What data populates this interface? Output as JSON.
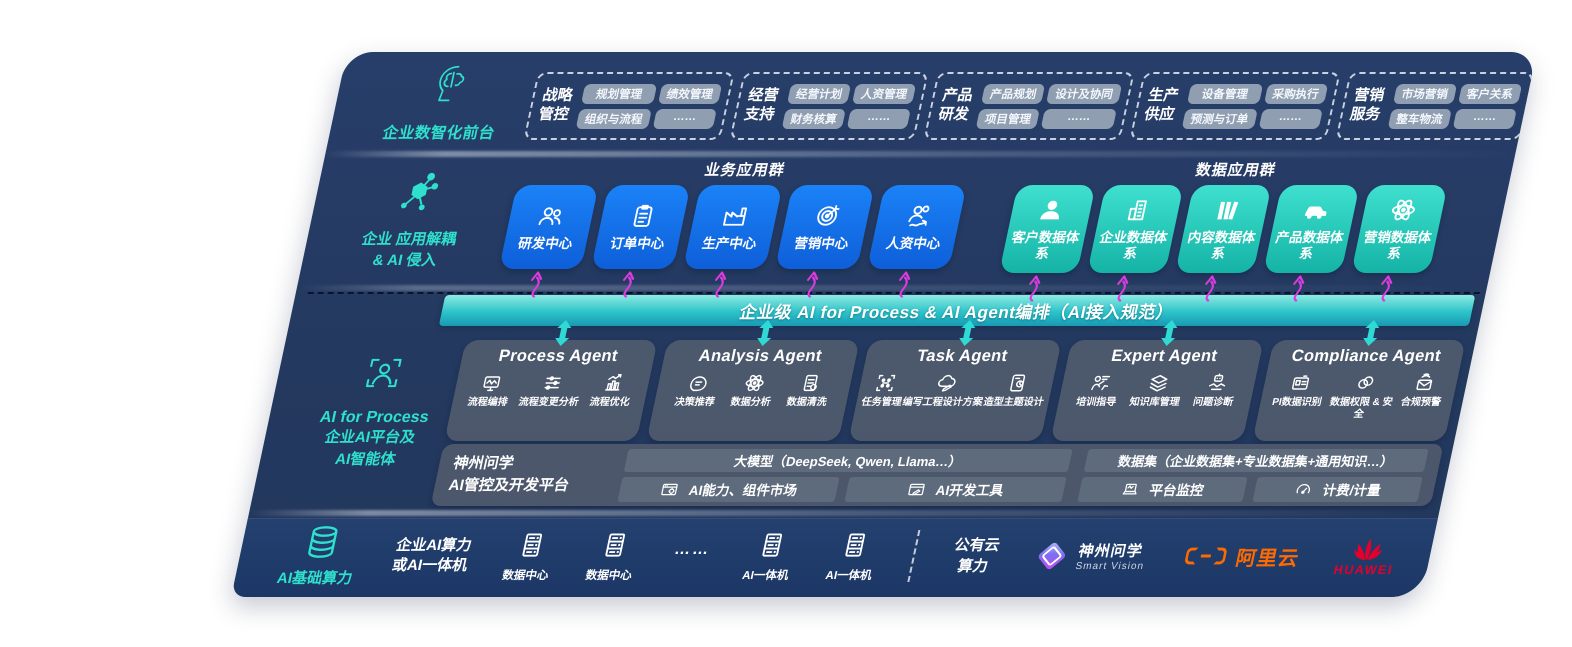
{
  "colors": {
    "panel_navy": "#24395F",
    "infra_navy": "#1E3A6C",
    "accent_teal": "#2FE0CD",
    "app_blue": "#1777F2",
    "data_teal": "#2ED3C4",
    "agent_slate": "#4D596C",
    "band_teal": "#2CC3C9",
    "magenta": "#DC3BDF",
    "pill_gray": "#9AA6BA",
    "aliyun_orange": "#FF6A00",
    "huawei_red": "#E4002B"
  },
  "front_layer": {
    "icon": "brain-head-icon",
    "label": "企业数智化前台",
    "groups": [
      {
        "title": "战略管控",
        "items": [
          "规划管理",
          "绩效管理",
          "组织与流程",
          "……"
        ]
      },
      {
        "title": "经营支持",
        "items": [
          "经营计划",
          "人资管理",
          "财务核算",
          "……"
        ]
      },
      {
        "title": "产品研发",
        "items": [
          "产品规划",
          "设计及协同",
          "项目管理",
          "……"
        ]
      },
      {
        "title": "生产供应",
        "items": [
          "设备管理",
          "采购执行",
          "预测与订单",
          "……"
        ]
      },
      {
        "title": "营销服务",
        "items": [
          "市场营销",
          "客户关系",
          "整车物流",
          "……"
        ]
      }
    ]
  },
  "app_layer": {
    "icon": "molecule-icon",
    "label_line1": "企业 应用解耦",
    "label_line2": "& AI 侵入",
    "connector_icon": "curved-arrow-icon",
    "business": {
      "title": "业务应用群",
      "boxes": [
        {
          "label": "研发中心",
          "icon": "people-icon"
        },
        {
          "label": "订单中心",
          "icon": "clipboard-icon"
        },
        {
          "label": "生产中心",
          "icon": "factory-icon"
        },
        {
          "label": "营销中心",
          "icon": "target-icon"
        },
        {
          "label": "人资中心",
          "icon": "people-flow-icon"
        }
      ]
    },
    "data": {
      "title": "数据应用群",
      "boxes": [
        {
          "label": "客户数据体系",
          "icon": "person-icon"
        },
        {
          "label": "企业数据体系",
          "icon": "building-icon"
        },
        {
          "label": "内容数据体系",
          "icon": "books-icon"
        },
        {
          "label": "产品数据体系",
          "icon": "car-icon"
        },
        {
          "label": "营销数据体系",
          "icon": "atom-icon"
        }
      ]
    }
  },
  "band": {
    "label": "企业级 AI for Process & AI Agent编排（AI接入规范）",
    "connector_icon": "updown-arrow-icon"
  },
  "agent_layer": {
    "icon": "person-scan-icon",
    "label_en": "AI for Process",
    "label_line2": "企业AI平台及",
    "label_line3": "AI智能体",
    "agents": [
      {
        "title": "Process Agent",
        "items": [
          {
            "label": "流程编排",
            "icon": "monitor-wave-icon"
          },
          {
            "label": "流程变更分析",
            "icon": "sliders-icon"
          },
          {
            "label": "流程优化",
            "icon": "chart-up-icon"
          }
        ]
      },
      {
        "title": "Analysis Agent",
        "items": [
          {
            "label": "决策推荐",
            "icon": "chat-head-icon"
          },
          {
            "label": "数据分析",
            "icon": "atom-icon"
          },
          {
            "label": "数据清洗",
            "icon": "doc-clean-icon"
          }
        ]
      },
      {
        "title": "Task Agent",
        "items": [
          {
            "label": "任务管理",
            "icon": "grid-scan-icon"
          },
          {
            "label": "编写工程设计方案",
            "icon": "cloud-pen-icon"
          },
          {
            "label": "造型主题设计",
            "icon": "tablet-check-icon"
          }
        ]
      },
      {
        "title": "Expert Agent",
        "items": [
          {
            "label": "培训指导",
            "icon": "teach-icon"
          },
          {
            "label": "知识库管理",
            "icon": "layers-icon"
          },
          {
            "label": "问题诊断",
            "icon": "bot-handshake-icon"
          }
        ]
      },
      {
        "title": "Compliance Agent",
        "items": [
          {
            "label": "PI数据识别",
            "icon": "id-card-icon"
          },
          {
            "label": "数据权限 & 安全",
            "icon": "rings-icon"
          },
          {
            "label": "合规预警",
            "icon": "mail-alert-icon"
          }
        ]
      }
    ]
  },
  "platform": {
    "label_line1": "神州问学",
    "label_line2": "AI管控及开发平台",
    "model_bar": "大模型（DeepSeek, Qwen, Llama…）",
    "left_cells": [
      {
        "label": "AI能力、组件市场",
        "icon": "window-gear-icon"
      },
      {
        "label": "AI开发工具",
        "icon": "window-pen-icon"
      }
    ],
    "dataset_bar": "数据集（企业数据集+专业数据集+通用知识…）",
    "right_cells": [
      {
        "label": "平台监控",
        "icon": "laptop-icon"
      },
      {
        "label": "计费/计量",
        "icon": "gauge-icon"
      }
    ]
  },
  "infra": {
    "icon": "database-icon",
    "label": "AI基础算力",
    "compute_lines": [
      "企业AI算力",
      "或AI一体机"
    ],
    "nodes": [
      {
        "label": "数据中心",
        "icon": "server-icon"
      },
      {
        "label": "数据中心",
        "icon": "server-icon"
      },
      {
        "label": "AI一体机",
        "icon": "server-icon"
      },
      {
        "label": "AI一体机",
        "icon": "server-icon"
      }
    ],
    "dots": "……",
    "cloud_lines": [
      "公有云",
      "算力"
    ],
    "logos": {
      "shenzhou": {
        "name": "神州问学",
        "sub": "Smart Vision",
        "icon": "diamond-logo"
      },
      "aliyun": {
        "name": "阿里云",
        "icon": "aliyun-bracket-logo"
      },
      "huawei": {
        "name": "HUAWEI",
        "icon": "huawei-flower-logo"
      }
    }
  }
}
